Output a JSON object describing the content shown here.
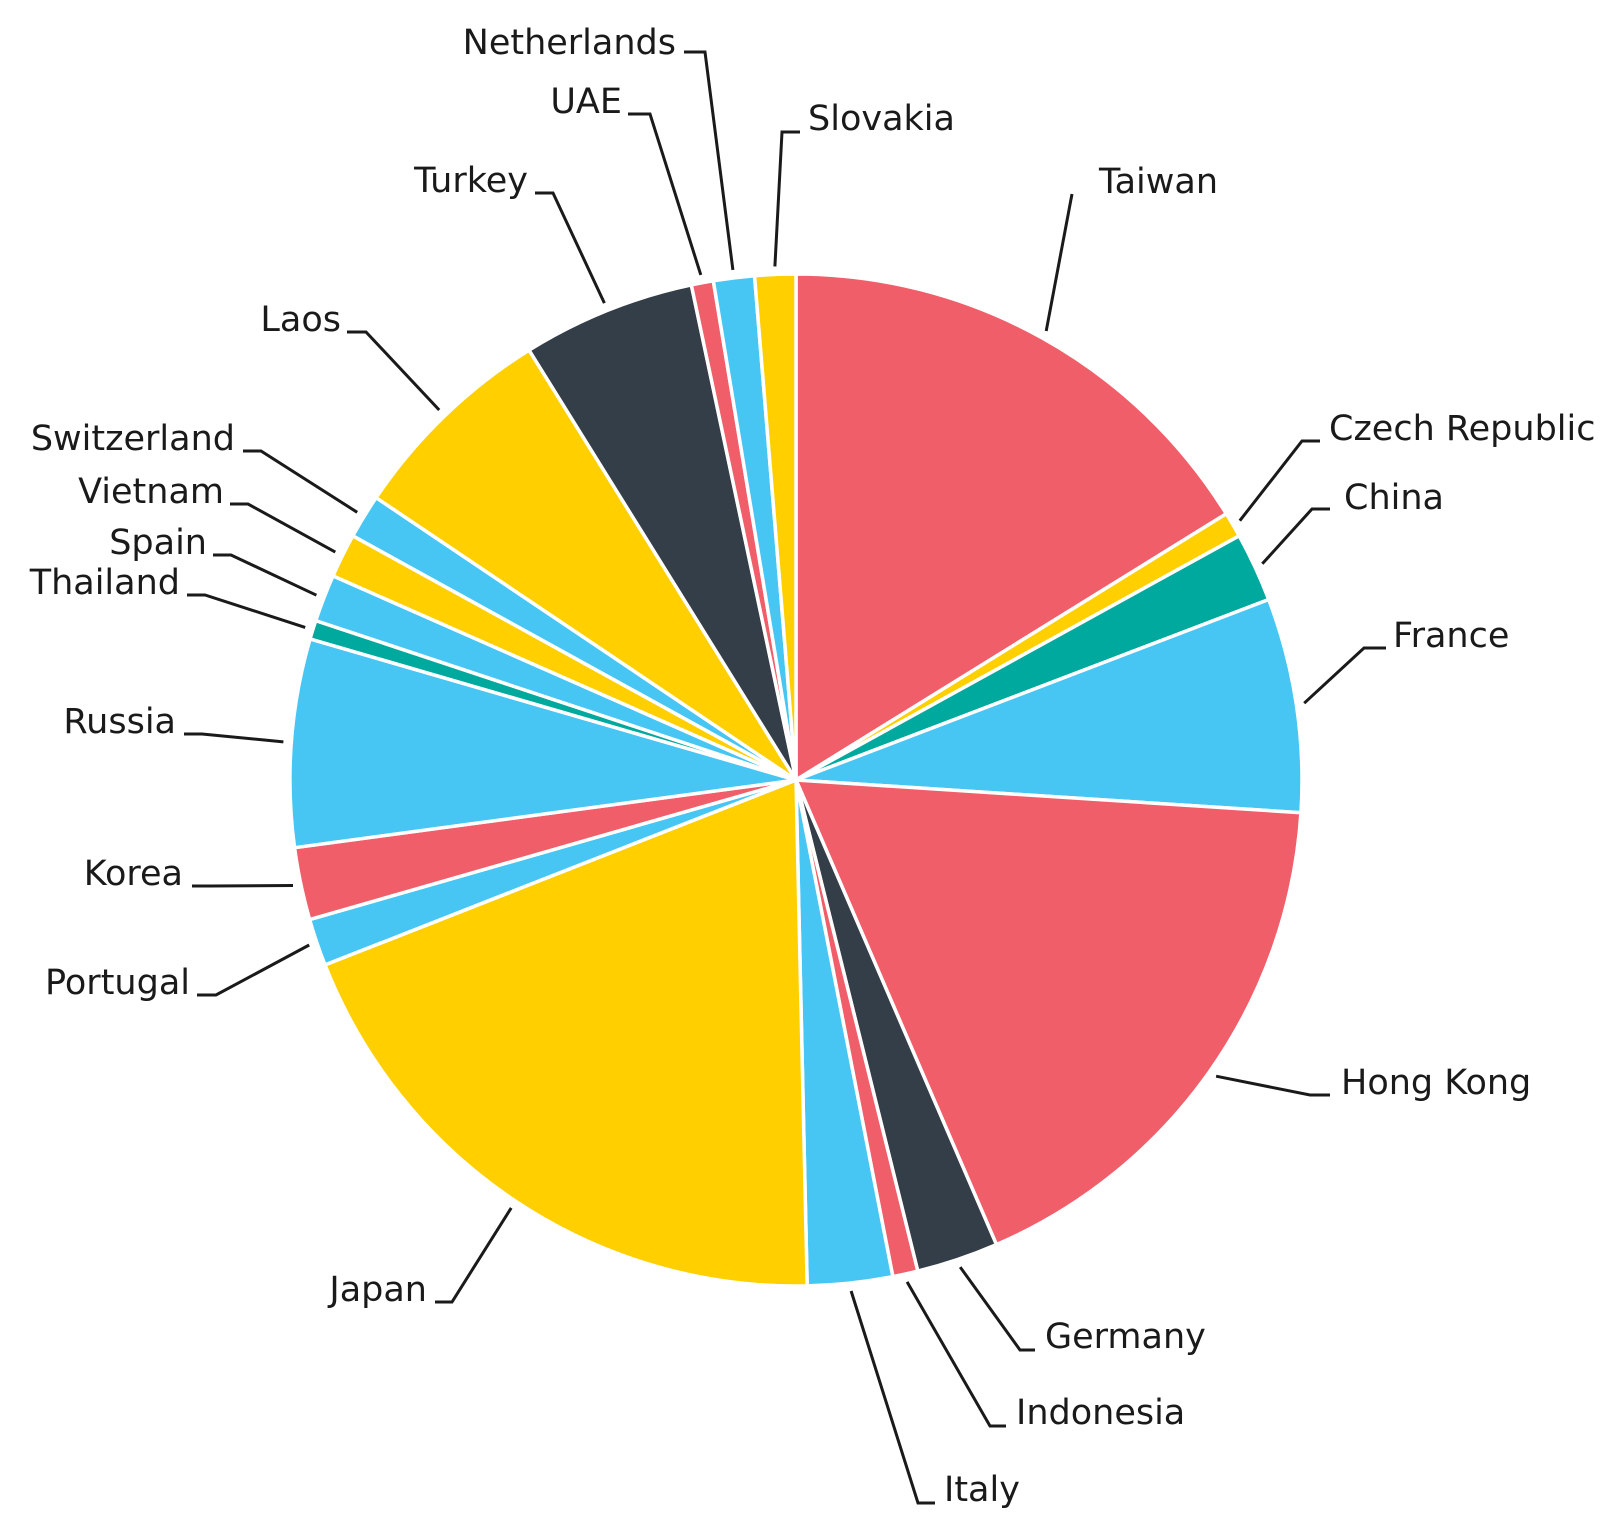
{
  "chart_data": {
    "type": "pie",
    "start_angle_deg": 0,
    "direction": "clockwise",
    "slices": [
      {
        "label": "Taiwan",
        "value": 16.1,
        "color": "#F05E6A"
      },
      {
        "label": "Czech Republic",
        "value": 0.8,
        "color": "#FFCF00"
      },
      {
        "label": "China",
        "value": 2.2,
        "color": "#00A99D"
      },
      {
        "label": "France",
        "value": 6.8,
        "color": "#47C6F3"
      },
      {
        "label": "Hong Kong",
        "value": 17.4,
        "color": "#F05E6A"
      },
      {
        "label": "Germany",
        "value": 2.6,
        "color": "#343E48"
      },
      {
        "label": "Indonesia",
        "value": 0.8,
        "color": "#F05E6A"
      },
      {
        "label": "Italy",
        "value": 2.7,
        "color": "#47C6F3"
      },
      {
        "label": "Japan",
        "value": 19.3,
        "color": "#FFCF00"
      },
      {
        "label": "Portugal",
        "value": 1.5,
        "color": "#47C6F3"
      },
      {
        "label": "Korea",
        "value": 2.3,
        "color": "#F05E6A"
      },
      {
        "label": "Russia",
        "value": 6.6,
        "color": "#47C6F3"
      },
      {
        "label": "Thailand",
        "value": 0.6,
        "color": "#00A99D"
      },
      {
        "label": "Spain",
        "value": 1.5,
        "color": "#47C6F3"
      },
      {
        "label": "Vietnam",
        "value": 1.4,
        "color": "#FFCF00"
      },
      {
        "label": "Switzerland",
        "value": 1.4,
        "color": "#47C6F3"
      },
      {
        "label": "Laos",
        "value": 6.7,
        "color": "#FFCF00"
      },
      {
        "label": "Turkey",
        "value": 5.5,
        "color": "#343E48"
      },
      {
        "label": "UAE",
        "value": 0.7,
        "color": "#F05E6A"
      },
      {
        "label": "Netherlands",
        "value": 1.3,
        "color": "#47C6F3"
      },
      {
        "label": "Slovakia",
        "value": 1.3,
        "color": "#FFCF00"
      }
    ]
  }
}
